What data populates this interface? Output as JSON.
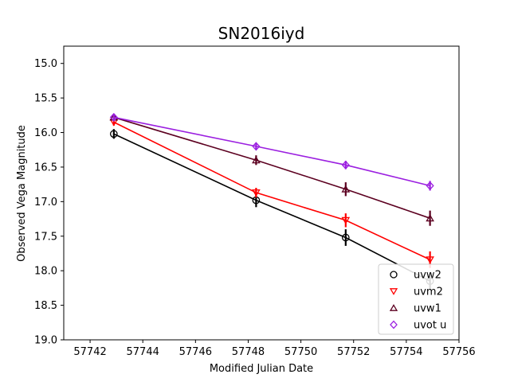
{
  "chart_data": {
    "type": "line",
    "title": "SN2016iyd",
    "xlabel": "Modified Julian Date",
    "ylabel": "Observed Vega Magnitude",
    "xlim": [
      57741,
      57756
    ],
    "ylim": [
      19.0,
      14.75
    ],
    "y_inverted": true,
    "x_ticks": [
      57742,
      57744,
      57746,
      57748,
      57750,
      57752,
      57754,
      57756
    ],
    "x_tick_labels": [
      "57742",
      "57744",
      "57746",
      "57748",
      "57750",
      "57752",
      "57754",
      "57756"
    ],
    "y_ticks": [
      15.0,
      15.5,
      16.0,
      16.5,
      17.0,
      17.5,
      18.0,
      18.5,
      19.0
    ],
    "y_tick_labels": [
      "15.0",
      "15.5",
      "16.0",
      "16.5",
      "17.0",
      "17.5",
      "18.0",
      "18.5",
      "19.0"
    ],
    "grid": false,
    "legend_position": "lower-right",
    "series": [
      {
        "name": "uvw2",
        "color": "#000000",
        "marker": "circle",
        "x": [
          57742.9,
          57748.3,
          57751.7,
          57754.9
        ],
        "y": [
          16.02,
          16.98,
          17.52,
          18.15
        ],
        "err": [
          0.07,
          0.1,
          0.12,
          0.12
        ]
      },
      {
        "name": "uvm2",
        "color": "#ff0000",
        "marker": "triangle-down",
        "x": [
          57742.9,
          57748.3,
          57751.7,
          57754.9
        ],
        "y": [
          15.85,
          16.87,
          17.27,
          17.84
        ],
        "err": [
          0.05,
          0.07,
          0.1,
          0.12
        ]
      },
      {
        "name": "uvw1",
        "color": "#5c0020",
        "marker": "triangle-up",
        "x": [
          57742.9,
          57748.3,
          57751.7,
          57754.9
        ],
        "y": [
          15.78,
          16.4,
          16.82,
          17.24
        ],
        "err": [
          0.05,
          0.07,
          0.1,
          0.11
        ]
      },
      {
        "name": "uvot u",
        "color": "#9b1fe0",
        "marker": "diamond",
        "x": [
          57742.9,
          57748.3,
          57751.7,
          57754.9
        ],
        "y": [
          15.78,
          16.2,
          16.47,
          16.77
        ],
        "err": [
          0.04,
          0.05,
          0.06,
          0.07
        ]
      }
    ]
  }
}
